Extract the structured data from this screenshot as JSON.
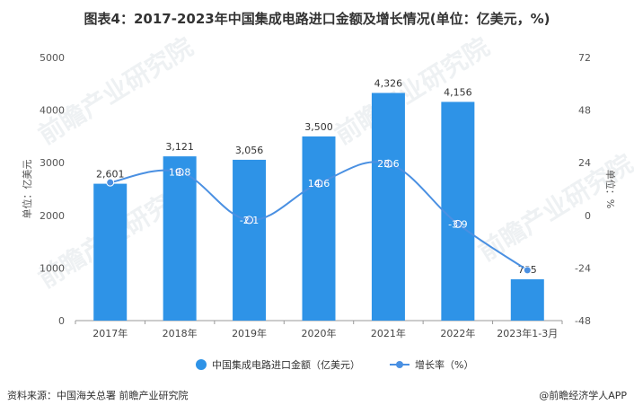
{
  "title": "图表4：2017-2023年中国集成电路进口金额及增长情况(单位：亿美元，%)",
  "footer": {
    "source": "资料来源：中国海关总署 前瞻产业研究院",
    "brand": "@前瞻经济学人APP"
  },
  "watermark": "前瞻产业研究院",
  "colors": {
    "bar": "#2E93E7",
    "line": "#4A90E2"
  },
  "chart_data": {
    "type": "bar",
    "categories": [
      "2017年",
      "2018年",
      "2019年",
      "2020年",
      "2021年",
      "2022年",
      "2023年1-3月"
    ],
    "series": [
      {
        "name": "中国集成电路进口金额（亿美元）",
        "type": "bar",
        "axis": "left",
        "values": [
          2601,
          3121,
          3056,
          3500,
          4326,
          4156,
          785
        ],
        "labels": [
          "2,601",
          "3,121",
          "3,056",
          "3,500",
          "4,326",
          "4,156",
          "785"
        ]
      },
      {
        "name": "增长率（%）",
        "type": "line",
        "axis": "right",
        "values": [
          15.0,
          19.8,
          -2.1,
          14.6,
          23.6,
          -3.9,
          -25.0
        ],
        "labels": [
          "",
          "19.8",
          "-2.1",
          "14.6",
          "23.6",
          "-3.9",
          ""
        ]
      }
    ],
    "ylabel": "单位：亿美元",
    "y2label": "单位：%",
    "ylim": [
      0,
      5000
    ],
    "yticks": [
      0,
      1000,
      2000,
      3000,
      4000,
      5000
    ],
    "y2lim": [
      -48,
      72
    ],
    "y2ticks": [
      -48,
      -24,
      0,
      24,
      48,
      72
    ],
    "grid": false,
    "legend": "bottom"
  }
}
